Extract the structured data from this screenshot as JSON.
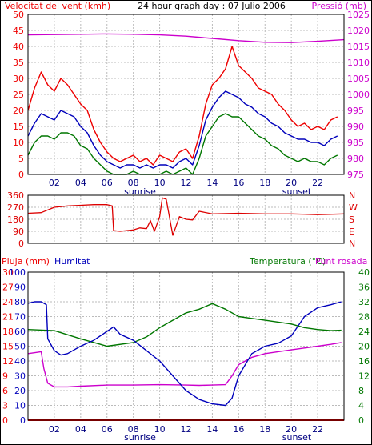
{
  "colors": {
    "wind": "#ee0000",
    "wind_dir": "#dd0000",
    "average": "#0000bb",
    "gust_low": "#007700",
    "pressure": "#cc00cc",
    "humidity": "#0000bb",
    "temperature": "#007700",
    "dewpoint": "#cc00cc",
    "rain": "#ee0000",
    "grid": "#bbbbbb",
    "frame": "#000000",
    "sun": "#000080"
  },
  "chart_data": [
    {
      "type": "line",
      "title": "24 hour graph day : 07 Julio 2006",
      "ylabel": "Velocitat del vent (kmh)",
      "y2label": "Pressió (mb)",
      "ylim": [
        0,
        50
      ],
      "y2lim": [
        975,
        1025
      ],
      "yticks": [
        "0",
        "5",
        "10",
        "15",
        "20",
        "25",
        "30",
        "35",
        "40",
        "45",
        "50"
      ],
      "y2ticks": [
        "975",
        "980",
        "985",
        "990",
        "995",
        "1000",
        "1005",
        "1010",
        "1015",
        "1020",
        "1025"
      ],
      "xlim": [
        0,
        24
      ],
      "xticks": [
        "02",
        "04",
        "06",
        "08",
        "10",
        "12",
        "14",
        "16",
        "18",
        "20",
        "22"
      ],
      "sunrise_label": "sunrise",
      "sunset_label": "sunset",
      "grid": true,
      "series": [
        {
          "key": "wind_max",
          "x": [
            0,
            0.5,
            1,
            1.5,
            2,
            2.5,
            3,
            3.5,
            4,
            4.5,
            5,
            5.5,
            6,
            6.5,
            7,
            7.5,
            8,
            8.5,
            9,
            9.5,
            10,
            10.5,
            11,
            11.5,
            12,
            12.5,
            13,
            13.5,
            14,
            14.5,
            15,
            15.5,
            16,
            16.5,
            17,
            17.5,
            18,
            18.5,
            19,
            19.5,
            20,
            20.5,
            21,
            21.5,
            22,
            22.5,
            23,
            23.5
          ],
          "y": [
            20,
            27,
            32,
            28,
            26,
            30,
            28,
            25,
            22,
            20,
            14,
            10,
            7,
            5,
            4,
            5,
            6,
            4,
            5,
            3,
            6,
            5,
            4,
            7,
            8,
            5,
            12,
            22,
            28,
            30,
            33,
            40,
            34,
            32,
            30,
            27,
            26,
            25,
            22,
            20,
            17,
            15,
            16,
            14,
            15,
            14,
            17,
            18
          ]
        },
        {
          "key": "wind_avg",
          "x": [
            0,
            0.5,
            1,
            1.5,
            2,
            2.5,
            3,
            3.5,
            4,
            4.5,
            5,
            5.5,
            6,
            6.5,
            7,
            7.5,
            8,
            8.5,
            9,
            9.5,
            10,
            10.5,
            11,
            11.5,
            12,
            12.5,
            13,
            13.5,
            14,
            14.5,
            15,
            15.5,
            16,
            16.5,
            17,
            17.5,
            18,
            18.5,
            19,
            19.5,
            20,
            20.5,
            21,
            21.5,
            22,
            22.5,
            23,
            23.5
          ],
          "y": [
            12,
            16,
            19,
            18,
            17,
            20,
            19,
            18,
            15,
            13,
            9,
            6,
            4,
            3,
            2,
            3,
            3,
            2,
            3,
            2,
            3,
            3,
            2,
            4,
            5,
            3,
            9,
            17,
            21,
            24,
            26,
            25,
            24,
            22,
            21,
            19,
            18,
            16,
            15,
            13,
            12,
            11,
            11,
            10,
            10,
            9,
            11,
            12
          ]
        },
        {
          "key": "wind_low",
          "x": [
            0,
            0.5,
            1,
            1.5,
            2,
            2.5,
            3,
            3.5,
            4,
            4.5,
            5,
            5.5,
            6,
            6.5,
            7,
            7.5,
            8,
            8.5,
            9,
            9.5,
            10,
            10.5,
            11,
            11.5,
            12,
            12.5,
            13,
            13.5,
            14,
            14.5,
            15,
            15.5,
            16,
            16.5,
            17,
            17.5,
            18,
            18.5,
            19,
            19.5,
            20,
            20.5,
            21,
            21.5,
            22,
            22.5,
            23,
            23.5
          ],
          "y": [
            6,
            10,
            12,
            12,
            11,
            13,
            13,
            12,
            9,
            8,
            5,
            3,
            1,
            0,
            0,
            0,
            1,
            0,
            0,
            0,
            0,
            1,
            0,
            1,
            2,
            0,
            5,
            12,
            15,
            18,
            19,
            18,
            18,
            16,
            14,
            12,
            11,
            9,
            8,
            6,
            5,
            4,
            5,
            4,
            4,
            3,
            5,
            6
          ]
        },
        {
          "key": "pressure",
          "x": [
            0,
            2,
            4,
            6,
            8,
            10,
            12,
            14,
            16,
            18,
            20,
            22,
            24
          ],
          "y": [
            1018.6,
            1018.7,
            1018.8,
            1018.9,
            1018.8,
            1018.6,
            1018.2,
            1017.5,
            1016.8,
            1016.3,
            1016.2,
            1016.6,
            1017.1
          ]
        }
      ]
    },
    {
      "type": "line",
      "ylim": [
        0,
        360
      ],
      "yticks": [
        "0",
        "90",
        "180",
        "270",
        "360"
      ],
      "y2ticks": [
        "N",
        "W",
        "S",
        "E",
        "N"
      ],
      "xlim": [
        0,
        24
      ],
      "grid": true,
      "series": [
        {
          "key": "wind_dir",
          "x": [
            0,
            1,
            2,
            3,
            4,
            5,
            6,
            6.4,
            6.5,
            7,
            8,
            8.5,
            9,
            9.3,
            9.6,
            10,
            10.2,
            10.5,
            11,
            11.5,
            12,
            12.5,
            13,
            14,
            16,
            18,
            20,
            22,
            24
          ],
          "y": [
            225,
            230,
            270,
            280,
            285,
            290,
            290,
            280,
            95,
            90,
            100,
            115,
            110,
            170,
            90,
            200,
            340,
            330,
            60,
            200,
            180,
            175,
            240,
            220,
            225,
            220,
            220,
            215,
            220
          ]
        }
      ]
    },
    {
      "type": "line",
      "ylabel": "Pluja (mm)",
      "y1label": "Humitat",
      "y2label": "Temperatura (°C)",
      "y3label": "Punt rosada",
      "rain_ylim": [
        0,
        30
      ],
      "hum_ylim": [
        0,
        100
      ],
      "temp_ylim": [
        0,
        40
      ],
      "rainticks": [
        "0",
        "3",
        "6",
        "9",
        "12",
        "15",
        "18",
        "21",
        "24",
        "27",
        "30"
      ],
      "humticks": [
        "0",
        "10",
        "20",
        "30",
        "40",
        "50",
        "60",
        "70",
        "80",
        "90",
        "100"
      ],
      "tempticks": [
        "0",
        "4",
        "8",
        "12",
        "16",
        "20",
        "24",
        "28",
        "32",
        "36",
        "40"
      ],
      "xlim": [
        0,
        24
      ],
      "xticks": [
        "02",
        "04",
        "06",
        "08",
        "10",
        "12",
        "14",
        "16",
        "18",
        "20",
        "22"
      ],
      "sunrise_label": "sunrise",
      "sunset_label": "sunset",
      "grid": true,
      "series": [
        {
          "key": "humidity",
          "x": [
            0,
            0.5,
            1,
            1.4,
            1.5,
            2,
            2.5,
            3,
            4,
            5,
            6,
            6.5,
            7,
            8,
            9,
            10,
            11,
            12,
            13,
            14,
            15,
            15.5,
            16,
            17,
            18,
            19,
            20,
            21,
            22,
            23,
            23.8
          ],
          "y": [
            79,
            80,
            80,
            78,
            55,
            47,
            44,
            45,
            50,
            54,
            60,
            63,
            58,
            54,
            47,
            40,
            30,
            20,
            14,
            11,
            10,
            15,
            30,
            45,
            50,
            52,
            57,
            70,
            76,
            78,
            80
          ]
        },
        {
          "key": "temperature",
          "x": [
            0,
            2,
            4,
            6,
            8,
            9,
            10,
            11,
            12,
            13,
            14,
            15,
            16,
            17,
            18,
            19,
            20,
            21,
            22,
            23,
            23.8
          ],
          "y": [
            24.5,
            24.2,
            22,
            20,
            21,
            22.5,
            25,
            27,
            29,
            30,
            31.5,
            30,
            28,
            27.5,
            27,
            26.5,
            26,
            25,
            24.5,
            24.2,
            24.3
          ]
        },
        {
          "key": "dewpoint",
          "x": [
            0,
            1,
            1.2,
            1.5,
            2,
            3,
            4,
            6,
            8,
            10,
            12,
            13,
            14,
            15,
            15.5,
            16,
            17,
            18,
            19,
            20,
            21,
            22,
            23,
            23.8
          ],
          "y": [
            18,
            18.5,
            14,
            10,
            9,
            9,
            9.2,
            9.5,
            9.5,
            9.6,
            9.5,
            9.4,
            9.5,
            9.6,
            12,
            15,
            17,
            18,
            18.5,
            19,
            19.5,
            20,
            20.5,
            21
          ]
        },
        {
          "key": "rain",
          "x": [
            0,
            24
          ],
          "y": [
            0,
            0
          ]
        }
      ]
    }
  ]
}
